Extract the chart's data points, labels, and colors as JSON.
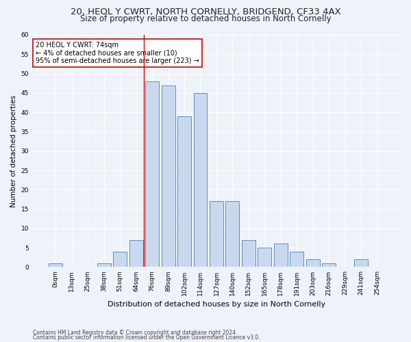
{
  "title1": "20, HEOL Y CWRT, NORTH CORNELLY, BRIDGEND, CF33 4AX",
  "title2": "Size of property relative to detached houses in North Cornelly",
  "xlabel": "Distribution of detached houses by size in North Cornelly",
  "ylabel": "Number of detached properties",
  "bin_labels": [
    "0sqm",
    "13sqm",
    "25sqm",
    "38sqm",
    "51sqm",
    "64sqm",
    "76sqm",
    "89sqm",
    "102sqm",
    "114sqm",
    "127sqm",
    "140sqm",
    "152sqm",
    "165sqm",
    "178sqm",
    "191sqm",
    "203sqm",
    "216sqm",
    "229sqm",
    "241sqm",
    "254sqm"
  ],
  "bar_heights": [
    1,
    0,
    0,
    1,
    4,
    7,
    48,
    47,
    39,
    45,
    17,
    17,
    7,
    5,
    6,
    4,
    2,
    1,
    0,
    2,
    0
  ],
  "bar_color": "#c9d9ed",
  "bar_edge_color": "#5b8cc8",
  "vline_x": 6.0,
  "vline_color": "#cc0000",
  "annotation_text": "20 HEOL Y CWRT: 74sqm\n← 4% of detached houses are smaller (10)\n95% of semi-detached houses are larger (223) →",
  "annotation_box_color": "#ffffff",
  "annotation_box_edge_color": "#cc0000",
  "ylim": [
    0,
    60
  ],
  "yticks": [
    0,
    5,
    10,
    15,
    20,
    25,
    30,
    35,
    40,
    45,
    50,
    55,
    60
  ],
  "footer_line1": "Contains HM Land Registry data © Crown copyright and database right 2024.",
  "footer_line2": "Contains public sector information licensed under the Open Government Licence v3.0.",
  "background_color": "#eef2f9",
  "plot_bg_color": "#eef2f9",
  "title_fontsize": 9.5,
  "subtitle_fontsize": 8.5,
  "tick_fontsize": 6.5,
  "ylabel_fontsize": 7.5,
  "xlabel_fontsize": 8.0,
  "annotation_fontsize": 7.0,
  "footer_fontsize": 5.5
}
